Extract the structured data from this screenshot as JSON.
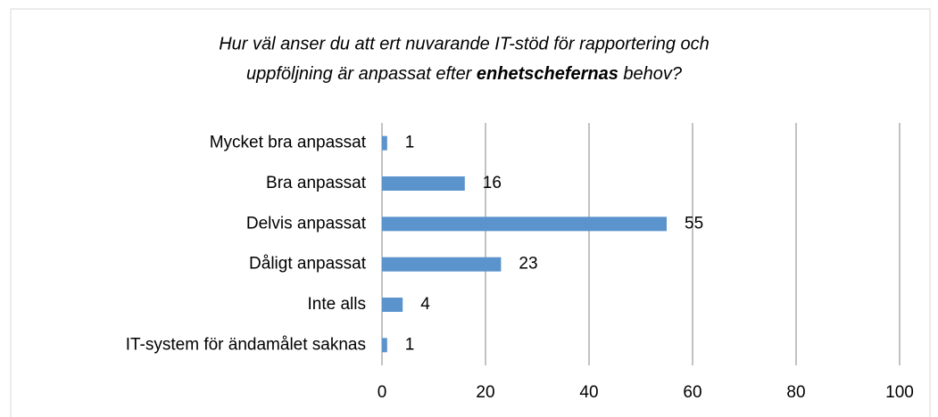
{
  "chart_data": {
    "type": "bar",
    "orientation": "horizontal",
    "title": [
      "Hur väl anser du att ert nuvarande IT-stöd för rapportering och",
      "uppföljning är anpassat efter enhetschefernas behov?"
    ],
    "title_emphasis": "enhetschefernas",
    "categories": [
      "Mycket bra anpassat",
      "Bra anpassat",
      "Delvis anpassat",
      "Dåligt anpassat",
      "Inte alls",
      "IT-system för ändamålet saknas"
    ],
    "values": [
      1,
      16,
      55,
      23,
      4,
      1
    ],
    "color": "#5b93cc",
    "xlim": [
      0,
      100
    ],
    "xticks": [
      0,
      20,
      40,
      60,
      80,
      100
    ],
    "grid": true
  }
}
